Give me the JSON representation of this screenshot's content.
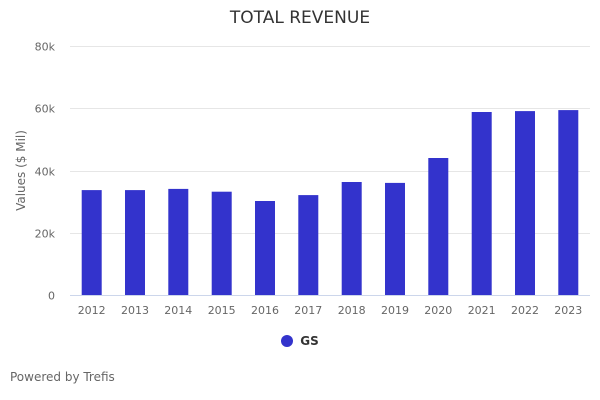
{
  "chart_data": {
    "type": "bar",
    "title": "TOTAL REVENUE",
    "xlabel": "",
    "ylabel": "Values ($ Mil)",
    "ylim": [
      0,
      80000
    ],
    "yticks": [
      0,
      20000,
      40000,
      60000,
      80000
    ],
    "ytick_labels": [
      "0",
      "20k",
      "40k",
      "60k",
      "80k"
    ],
    "grid": true,
    "categories": [
      "2012",
      "2013",
      "2014",
      "2015",
      "2016",
      "2017",
      "2018",
      "2019",
      "2020",
      "2021",
      "2022",
      "2023"
    ],
    "series": [
      {
        "name": "GS",
        "color": "#3333cc",
        "values": [
          33700,
          33700,
          34100,
          33200,
          30200,
          32100,
          36300,
          36000,
          44000,
          58800,
          59100,
          59400
        ]
      }
    ],
    "legend_position": "bottom-center"
  },
  "footer": {
    "credit": "Powered by Trefis"
  }
}
